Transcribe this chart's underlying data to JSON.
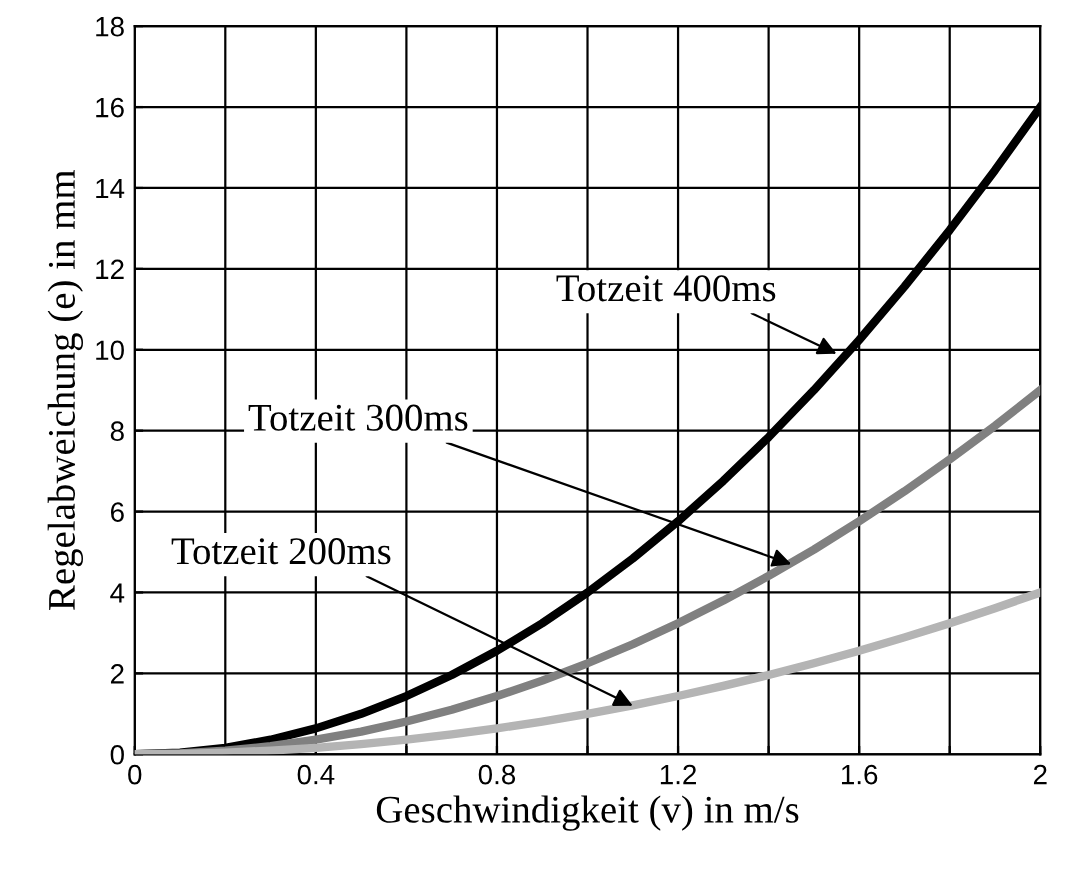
{
  "chart_data": {
    "type": "line",
    "xlabel": "Geschwindigkeit (v) in m/s",
    "ylabel": "Regelabweichung (e) in mm",
    "x": [
      0,
      0.1,
      0.2,
      0.3,
      0.4,
      0.5,
      0.6,
      0.7,
      0.8,
      0.9,
      1.0,
      1.1,
      1.2,
      1.3,
      1.4,
      1.5,
      1.6,
      1.7,
      1.8,
      1.9,
      2.0
    ],
    "series": [
      {
        "color": "#000000",
        "values": [
          0,
          0.04,
          0.16,
          0.36,
          0.64,
          1.0,
          1.44,
          1.96,
          2.56,
          3.24,
          4.0,
          4.84,
          5.76,
          6.76,
          7.84,
          9.0,
          10.24,
          11.56,
          12.96,
          14.44,
          16.0
        ]
      },
      {
        "color": "#808080",
        "values": [
          0,
          0.02,
          0.09,
          0.2,
          0.36,
          0.56,
          0.81,
          1.1,
          1.44,
          1.82,
          2.25,
          2.72,
          3.24,
          3.8,
          4.41,
          5.06,
          5.76,
          6.5,
          7.29,
          8.12,
          9.0
        ]
      },
      {
        "color": "#b4b4b4",
        "values": [
          0,
          0.01,
          0.04,
          0.09,
          0.16,
          0.25,
          0.36,
          0.49,
          0.64,
          0.81,
          1.0,
          1.21,
          1.44,
          1.69,
          1.96,
          2.25,
          2.56,
          2.89,
          3.24,
          3.61,
          4.0
        ]
      }
    ],
    "annotations": [
      {
        "text": "Totzeit 400ms",
        "x": 1.55,
        "y": 9.9
      },
      {
        "text": "Totzeit 300ms",
        "x": 1.45,
        "y": 4.7
      },
      {
        "text": "Totzeit 200ms",
        "x": 1.1,
        "y": 1.2
      }
    ],
    "xlim": [
      0,
      2
    ],
    "ylim": [
      0,
      18
    ],
    "xticks": [
      0,
      {
        "value": 0.2,
        "label": null
      },
      0.4,
      {
        "value": 0.6,
        "label": null
      },
      0.8,
      {
        "value": 1.0,
        "label": null
      },
      1.2,
      {
        "value": 1.4,
        "label": null
      },
      1.6,
      {
        "value": 1.8,
        "label": null
      },
      2
    ],
    "yticks": [
      0,
      2,
      4,
      6,
      8,
      10,
      12,
      14,
      16,
      18
    ],
    "grid": true,
    "marker": "none",
    "line_style": "solid"
  }
}
